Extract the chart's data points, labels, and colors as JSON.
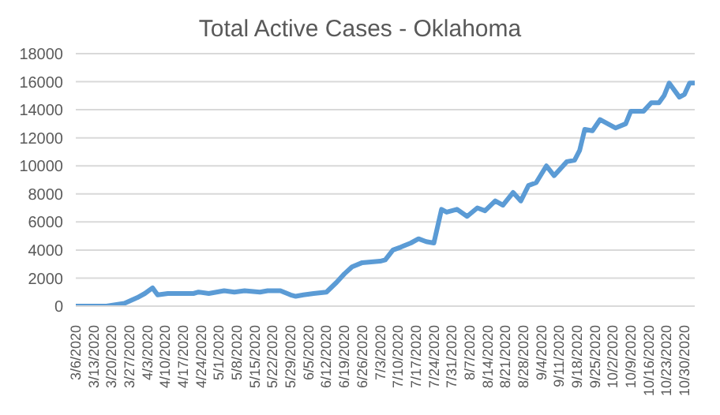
{
  "chart_data": {
    "type": "line",
    "title": "Total Active Cases - Oklahoma",
    "x": [
      "2020-03-06",
      "2020-03-18",
      "2020-03-25",
      "2020-03-30",
      "2020-04-02",
      "2020-04-05",
      "2020-04-07",
      "2020-04-11",
      "2020-04-21",
      "2020-04-23",
      "2020-04-27",
      "2020-05-03",
      "2020-05-07",
      "2020-05-11",
      "2020-05-17",
      "2020-05-20",
      "2020-05-25",
      "2020-05-29",
      "2020-05-31",
      "2020-06-03",
      "2020-06-07",
      "2020-06-12",
      "2020-06-16",
      "2020-06-19",
      "2020-06-22",
      "2020-06-26",
      "2020-07-03",
      "2020-07-05",
      "2020-07-08",
      "2020-07-11",
      "2020-07-15",
      "2020-07-18",
      "2020-07-21",
      "2020-07-24",
      "2020-07-27",
      "2020-07-29",
      "2020-08-02",
      "2020-08-06",
      "2020-08-10",
      "2020-08-13",
      "2020-08-17",
      "2020-08-20",
      "2020-08-24",
      "2020-08-27",
      "2020-08-30",
      "2020-09-02",
      "2020-09-06",
      "2020-09-09",
      "2020-09-14",
      "2020-09-17",
      "2020-09-19",
      "2020-09-21",
      "2020-09-24",
      "2020-09-27",
      "2020-10-03",
      "2020-10-07",
      "2020-10-09",
      "2020-10-14",
      "2020-10-17",
      "2020-10-20",
      "2020-10-22",
      "2020-10-24",
      "2020-10-28",
      "2020-10-30",
      "2020-11-01",
      "2020-11-03"
    ],
    "series": [
      {
        "color": "#5b9bd5",
        "values": [
          0,
          0,
          200,
          600,
          900,
          1300,
          800,
          900,
          900,
          1000,
          900,
          1100,
          1000,
          1100,
          1000,
          1100,
          1100,
          800,
          700,
          800,
          900,
          1000,
          1700,
          2300,
          2800,
          3100,
          3200,
          3300,
          4000,
          4200,
          4500,
          4800,
          4600,
          4500,
          6900,
          6700,
          6900,
          6400,
          7000,
          6800,
          7500,
          7200,
          8100,
          7500,
          8600,
          8800,
          10000,
          9300,
          10300,
          10400,
          11100,
          12600,
          12500,
          13300,
          12700,
          13000,
          13900,
          13900,
          14500,
          14500,
          15000,
          15900,
          14900,
          15100,
          15900,
          15900
        ]
      }
    ],
    "xlim": [
      "2020-03-06",
      "2020-11-03"
    ],
    "xticks": [
      {
        "value": "2020-03-06",
        "label": "3/6/2020"
      },
      {
        "value": "2020-03-13",
        "label": "3/13/2020"
      },
      {
        "value": "2020-03-20",
        "label": "3/20/2020"
      },
      {
        "value": "2020-03-27",
        "label": "3/27/2020"
      },
      {
        "value": "2020-04-03",
        "label": "4/3/2020"
      },
      {
        "value": "2020-04-10",
        "label": "4/10/2020"
      },
      {
        "value": "2020-04-17",
        "label": "4/17/2020"
      },
      {
        "value": "2020-04-24",
        "label": "4/24/2020"
      },
      {
        "value": "2020-05-01",
        "label": "5/1/2020"
      },
      {
        "value": "2020-05-08",
        "label": "5/8/2020"
      },
      {
        "value": "2020-05-15",
        "label": "5/15/2020"
      },
      {
        "value": "2020-05-22",
        "label": "5/22/2020"
      },
      {
        "value": "2020-05-29",
        "label": "5/29/2020"
      },
      {
        "value": "2020-06-05",
        "label": "6/5/2020"
      },
      {
        "value": "2020-06-12",
        "label": "6/12/2020"
      },
      {
        "value": "2020-06-19",
        "label": "6/19/2020"
      },
      {
        "value": "2020-06-26",
        "label": "6/26/2020"
      },
      {
        "value": "2020-07-03",
        "label": "7/3/2020"
      },
      {
        "value": "2020-07-10",
        "label": "7/10/2020"
      },
      {
        "value": "2020-07-17",
        "label": "7/17/2020"
      },
      {
        "value": "2020-07-24",
        "label": "7/24/2020"
      },
      {
        "value": "2020-07-31",
        "label": "7/31/2020"
      },
      {
        "value": "2020-08-07",
        "label": "8/7/2020"
      },
      {
        "value": "2020-08-14",
        "label": "8/14/2020"
      },
      {
        "value": "2020-08-21",
        "label": "8/21/2020"
      },
      {
        "value": "2020-08-28",
        "label": "8/28/2020"
      },
      {
        "value": "2020-09-04",
        "label": "9/4/2020"
      },
      {
        "value": "2020-09-11",
        "label": "9/11/2020"
      },
      {
        "value": "2020-09-18",
        "label": "9/18/2020"
      },
      {
        "value": "2020-09-25",
        "label": "9/25/2020"
      },
      {
        "value": "2020-10-02",
        "label": "10/2/2020"
      },
      {
        "value": "2020-10-09",
        "label": "10/9/2020"
      },
      {
        "value": "2020-10-16",
        "label": "10/16/2020"
      },
      {
        "value": "2020-10-23",
        "label": "10/23/2020"
      },
      {
        "value": "2020-10-30",
        "label": "10/30/2020"
      }
    ],
    "ylim": [
      0,
      18000
    ],
    "yticks": [
      0,
      2000,
      4000,
      6000,
      8000,
      10000,
      12000,
      14000,
      16000,
      18000
    ],
    "grid": "y",
    "legend": false,
    "marker": "none",
    "line_style": "solid"
  }
}
